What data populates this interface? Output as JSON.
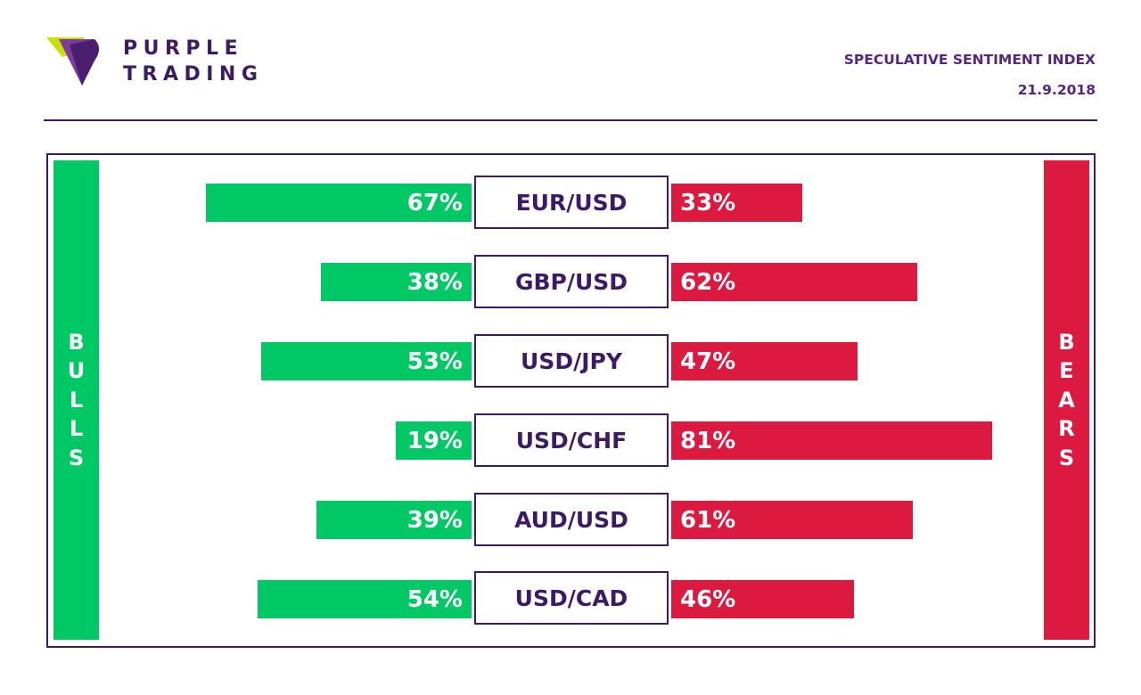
{
  "brand": {
    "line1": "PURPLE",
    "line2": "TRADING"
  },
  "header": {
    "title": "SPECULATIVE SENTIMENT INDEX",
    "date": "21.9.2018"
  },
  "sides": {
    "bulls": [
      "B",
      "U",
      "L",
      "L",
      "S"
    ],
    "bears": [
      "B",
      "E",
      "A",
      "R",
      "S"
    ]
  },
  "colors": {
    "bulls": "#00c864",
    "bears": "#dc1a40",
    "brand": "#3d1a66",
    "logo_lime": "#c8e000"
  },
  "chart_data": {
    "type": "bar",
    "categories": [
      "EUR/USD",
      "GBP/USD",
      "USD/JPY",
      "USD/CHF",
      "AUD/USD",
      "USD/CAD"
    ],
    "series": [
      {
        "name": "BULLS",
        "values": [
          67,
          38,
          53,
          19,
          39,
          54
        ]
      },
      {
        "name": "BEARS",
        "values": [
          33,
          62,
          47,
          81,
          61,
          46
        ]
      }
    ],
    "unit": "%"
  }
}
